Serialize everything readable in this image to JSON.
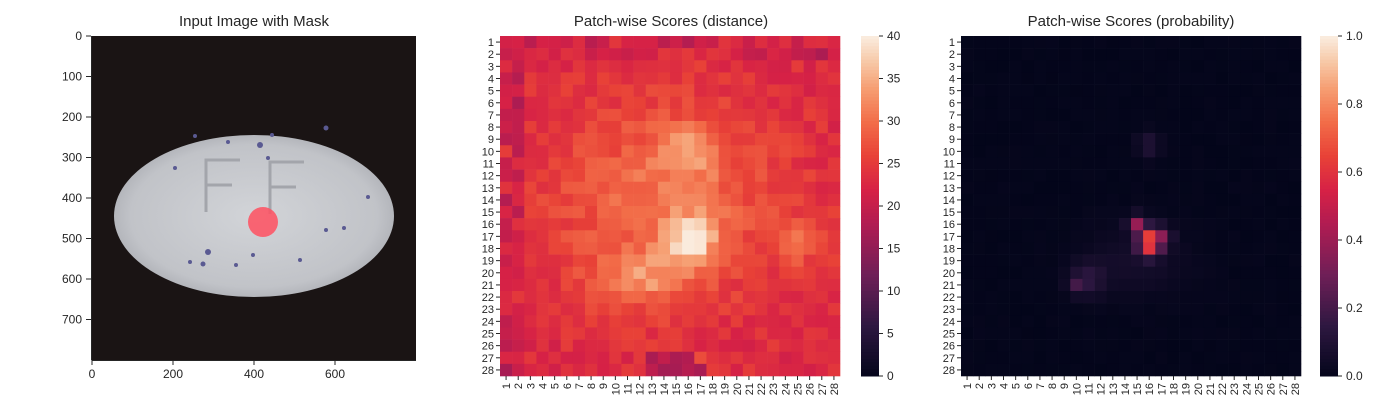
{
  "chart_data": [
    {
      "type": "image",
      "title": "Input Image with Mask",
      "xticks": [
        0,
        200,
        400,
        600
      ],
      "yticks": [
        0,
        100,
        200,
        300,
        400,
        500,
        600,
        700
      ],
      "xlim": [
        0,
        800
      ],
      "ylim": [
        0,
        800
      ]
    },
    {
      "type": "heatmap",
      "title": "Patch-wise Scores (distance)",
      "rows": 28,
      "cols": 28,
      "colorbar_ticks": [
        0,
        5,
        10,
        15,
        20,
        25,
        30,
        35,
        40
      ],
      "vmin": 0,
      "vmax": 40,
      "colormap": "rocket",
      "hotspots": [
        {
          "row": 17,
          "col": 16,
          "value": 40
        },
        {
          "row": 21,
          "col": 11,
          "value": 34
        },
        {
          "row": 10,
          "col": 16,
          "value": 32
        },
        {
          "row": 18,
          "col": 26,
          "value": 31
        }
      ]
    },
    {
      "type": "heatmap",
      "title": "Patch-wise Scores (probability)",
      "rows": 28,
      "cols": 28,
      "colorbar_ticks": [
        "0.0",
        "0.2",
        "0.4",
        "0.6",
        "0.8",
        "1.0"
      ],
      "vmin": 0.0,
      "vmax": 1.0,
      "colormap": "rocket",
      "hotspots": [
        {
          "row": 17,
          "col": 16,
          "value": 0.7
        },
        {
          "row": 18,
          "col": 16,
          "value": 0.7
        },
        {
          "row": 16,
          "col": 15,
          "value": 0.5
        },
        {
          "row": 21,
          "col": 10,
          "value": 0.3
        },
        {
          "row": 9,
          "col": 16,
          "value": 0.15
        }
      ]
    }
  ]
}
